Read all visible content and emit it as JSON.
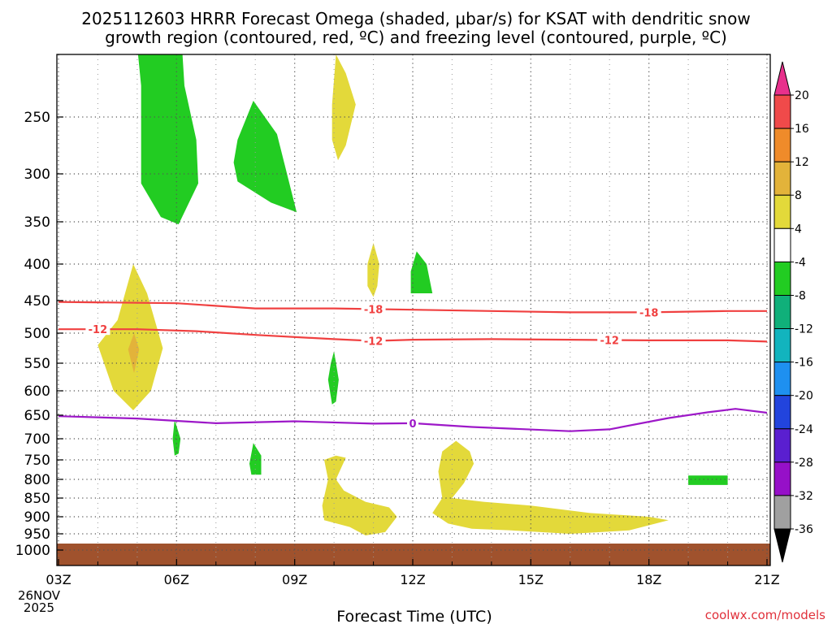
{
  "chart_data": {
    "type": "heatmap",
    "title_line1": "2025112603 HRRR Forecast Omega (shaded, µbar/s) for KSAT with dendritic snow",
    "title_line2": "growth region (contoured, red, ºC) and freezing level (contoured, purple, ºC)",
    "xlabel": "Forecast Time (UTC)",
    "ylabel": "",
    "credit": "coolwx.com/models",
    "date_label": [
      "26NOV",
      "2025"
    ],
    "x_range_hours": [
      0,
      18
    ],
    "x_ticks": [
      {
        "label": "03Z",
        "hour": 0
      },
      {
        "label": "06Z",
        "hour": 3
      },
      {
        "label": "09Z",
        "hour": 6
      },
      {
        "label": "12Z",
        "hour": 9
      },
      {
        "label": "15Z",
        "hour": 12
      },
      {
        "label": "18Z",
        "hour": 15
      },
      {
        "label": "21Z",
        "hour": 18
      }
    ],
    "y_axis": {
      "unit": "hPa",
      "top_hpa": 200,
      "bottom_hpa": 1000
    },
    "y_ticks": [
      250,
      300,
      350,
      400,
      450,
      500,
      550,
      600,
      650,
      700,
      750,
      800,
      850,
      900,
      950,
      1000
    ],
    "surface_pressure_hpa": 980,
    "colorbar": {
      "labels": [
        "20",
        "16",
        "12",
        "8",
        "4",
        "-4",
        "-8",
        "-12",
        "-16",
        "-20",
        "-24",
        "-28",
        "-32",
        "-36"
      ],
      "colors": [
        "#e8308c",
        "#f04a4a",
        "#ef8b2a",
        "#e3b33a",
        "#e3d93a",
        "#ffffff",
        "#22cc22",
        "#10b07a",
        "#12b4be",
        "#1e90f0",
        "#2244dd",
        "#5a1fd0",
        "#9610c8",
        "#a0a0a0",
        "#000000"
      ]
    },
    "contours": [
      {
        "name": "dendritic-upper",
        "value": "-18",
        "color": "#f04040",
        "points": [
          [
            0,
            452
          ],
          [
            3,
            454
          ],
          [
            5,
            462
          ],
          [
            7,
            462
          ],
          [
            9,
            464
          ],
          [
            11,
            466
          ],
          [
            13,
            468
          ],
          [
            15,
            468
          ],
          [
            17,
            466
          ],
          [
            18,
            466
          ]
        ],
        "labels": [
          {
            "hour": 8,
            "hpa": 464,
            "text": "-18"
          },
          {
            "hour": 15,
            "hpa": 468,
            "text": "-18"
          }
        ]
      },
      {
        "name": "dendritic-lower",
        "value": "-12",
        "color": "#f04040",
        "points": [
          [
            0,
            494
          ],
          [
            2,
            494
          ],
          [
            3.5,
            497
          ],
          [
            5,
            503
          ],
          [
            7,
            510
          ],
          [
            8,
            513
          ],
          [
            9,
            511
          ],
          [
            11,
            510
          ],
          [
            13,
            511
          ],
          [
            15,
            512
          ],
          [
            17,
            512
          ],
          [
            18,
            514
          ]
        ],
        "labels": [
          {
            "hour": 1,
            "hpa": 494,
            "text": "-12"
          },
          {
            "hour": 8,
            "hpa": 513,
            "text": "-12"
          },
          {
            "hour": 14,
            "hpa": 512,
            "text": "-12"
          }
        ]
      },
      {
        "name": "freezing-level",
        "value": "0",
        "color": "#9d18c8",
        "points": [
          [
            0,
            652
          ],
          [
            2,
            657
          ],
          [
            3,
            662
          ],
          [
            4,
            667
          ],
          [
            6,
            663
          ],
          [
            8,
            668
          ],
          [
            9,
            667
          ],
          [
            10.5,
            675
          ],
          [
            13,
            684
          ],
          [
            14,
            680
          ],
          [
            15.5,
            656
          ],
          [
            16.5,
            644
          ],
          [
            17.2,
            637
          ],
          [
            18,
            645
          ]
        ],
        "labels": [
          {
            "hour": 9,
            "hpa": 667,
            "text": "0"
          }
        ]
      }
    ],
    "shaded_regions": [
      {
        "name": "omega-green-1",
        "value": "-4 to -8",
        "color": "#22cc22",
        "points": [
          [
            2.02,
            200
          ],
          [
            2.1,
            225
          ],
          [
            2.1,
            310
          ],
          [
            2.6,
            345
          ],
          [
            3.05,
            353
          ],
          [
            3.55,
            310
          ],
          [
            3.5,
            270
          ],
          [
            3.2,
            225
          ],
          [
            3.15,
            200
          ]
        ]
      },
      {
        "name": "omega-green-2",
        "value": "-4 to -8",
        "color": "#22cc22",
        "points": [
          [
            4.55,
            270
          ],
          [
            4.95,
            237
          ],
          [
            5.55,
            265
          ],
          [
            6.05,
            340
          ],
          [
            5.4,
            330
          ],
          [
            4.55,
            308
          ],
          [
            4.45,
            290
          ]
        ]
      },
      {
        "name": "omega-yellow-3",
        "value": "4 to 8",
        "color": "#e3d93a",
        "points": [
          [
            6.95,
            240
          ],
          [
            7.05,
            200
          ],
          [
            7.3,
            215
          ],
          [
            7.55,
            240
          ],
          [
            7.3,
            275
          ],
          [
            7.1,
            288
          ],
          [
            6.95,
            270
          ]
        ]
      },
      {
        "name": "omega-yellow-4",
        "value": "4 to 8",
        "color": "#e3d93a",
        "points": [
          [
            1.0,
            520
          ],
          [
            1.5,
            480
          ],
          [
            1.9,
            400
          ],
          [
            2.25,
            440
          ],
          [
            2.65,
            525
          ],
          [
            2.35,
            600
          ],
          [
            1.9,
            640
          ],
          [
            1.4,
            600
          ]
        ]
      },
      {
        "name": "omega-orange-5",
        "value": "8 to 12",
        "color": "#e3b33a",
        "points": [
          [
            1.92,
            500
          ],
          [
            2.05,
            527
          ],
          [
            1.92,
            568
          ],
          [
            1.77,
            527
          ]
        ]
      },
      {
        "name": "omega-yellow-6",
        "value": "4 to 8",
        "color": "#e3d93a",
        "points": [
          [
            7.85,
            400
          ],
          [
            8.0,
            375
          ],
          [
            8.15,
            400
          ],
          [
            8.1,
            430
          ],
          [
            8.0,
            445
          ],
          [
            7.85,
            430
          ]
        ]
      },
      {
        "name": "omega-green-7",
        "value": "-4 to -8",
        "color": "#22cc22",
        "points": [
          [
            8.95,
            410
          ],
          [
            9.1,
            385
          ],
          [
            9.35,
            400
          ],
          [
            9.5,
            440
          ],
          [
            8.95,
            440
          ]
        ]
      },
      {
        "name": "omega-green-8",
        "value": "-4 to -8",
        "color": "#22cc22",
        "points": [
          [
            6.85,
            580
          ],
          [
            6.92,
            550
          ],
          [
            7.0,
            530
          ],
          [
            7.12,
            580
          ],
          [
            7.05,
            622
          ],
          [
            6.95,
            628
          ]
        ]
      },
      {
        "name": "omega-green-9",
        "value": "-4 to -8",
        "color": "#22cc22",
        "points": [
          [
            2.9,
            700
          ],
          [
            2.95,
            660
          ],
          [
            3.1,
            700
          ],
          [
            3.05,
            735
          ],
          [
            2.95,
            740
          ]
        ]
      },
      {
        "name": "omega-green-10",
        "value": "-4 to -8",
        "color": "#22cc22",
        "points": [
          [
            4.85,
            760
          ],
          [
            4.95,
            710
          ],
          [
            5.15,
            740
          ],
          [
            5.15,
            788
          ],
          [
            4.9,
            788
          ]
        ]
      },
      {
        "name": "omega-yellow-11",
        "value": "4 to 8",
        "color": "#e3d93a",
        "points": [
          [
            6.75,
            750
          ],
          [
            7.05,
            740
          ],
          [
            7.3,
            745
          ],
          [
            7.05,
            800
          ],
          [
            7.25,
            830
          ],
          [
            7.8,
            860
          ],
          [
            8.4,
            875
          ],
          [
            8.6,
            900
          ],
          [
            8.3,
            945
          ],
          [
            7.8,
            955
          ],
          [
            7.4,
            930
          ],
          [
            6.75,
            910
          ],
          [
            6.7,
            870
          ],
          [
            6.85,
            800
          ]
        ]
      },
      {
        "name": "omega-yellow-12",
        "value": "4 to 8",
        "color": "#e3d93a",
        "points": [
          [
            9.75,
            730
          ],
          [
            10.1,
            705
          ],
          [
            10.45,
            730
          ],
          [
            10.55,
            760
          ],
          [
            10.3,
            810
          ],
          [
            10.0,
            850
          ],
          [
            10.8,
            860
          ],
          [
            12.0,
            870
          ],
          [
            13.5,
            890
          ],
          [
            15.0,
            900
          ],
          [
            15.5,
            910
          ],
          [
            14.5,
            940
          ],
          [
            13.0,
            950
          ],
          [
            11.5,
            940
          ],
          [
            10.5,
            935
          ],
          [
            9.9,
            920
          ],
          [
            9.5,
            890
          ],
          [
            9.75,
            850
          ],
          [
            9.65,
            780
          ]
        ]
      },
      {
        "name": "omega-green-13",
        "value": "-4 to -8",
        "color": "#22cc22",
        "points": [
          [
            16.0,
            790
          ],
          [
            17.0,
            790
          ],
          [
            17.0,
            815
          ],
          [
            16.0,
            815
          ]
        ]
      }
    ]
  }
}
